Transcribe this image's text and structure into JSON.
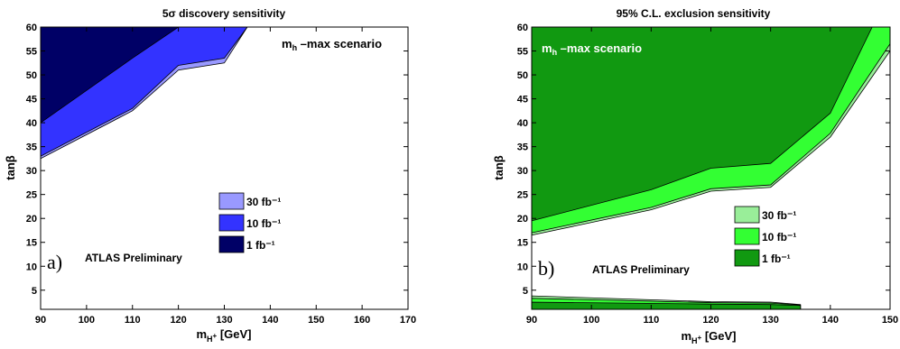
{
  "chart_data": [
    {
      "type": "area",
      "title": "5σ discovery sensitivity",
      "xlabel": "m_H+ [GeV]",
      "ylabel": "tanβ",
      "xlim": [
        90,
        170
      ],
      "ylim": [
        1,
        60
      ],
      "xticks": [
        90,
        100,
        110,
        120,
        130,
        140,
        150,
        160,
        170
      ],
      "yticks": [
        5,
        10,
        15,
        20,
        25,
        30,
        35,
        40,
        45,
        50,
        55,
        60
      ],
      "annotation": "m_h –max scenario",
      "annotation_color": "#000000",
      "panel_label": "a)",
      "watermark": "ATLAS Preliminary",
      "legend_position": "lower-center",
      "series": [
        {
          "name": "30 fb⁻¹",
          "color": "#9999ff",
          "x": [
            90,
            110,
            120,
            130,
            135
          ],
          "y": [
            32.5,
            42.5,
            51.0,
            52.5,
            60
          ]
        },
        {
          "name": "10 fb⁻¹",
          "color": "#3333ff",
          "x": [
            90,
            110,
            120,
            130,
            135
          ],
          "y": [
            33.0,
            43.0,
            52.0,
            53.5,
            60
          ]
        },
        {
          "name": "1 fb⁻¹",
          "color": "#000066",
          "x": [
            90,
            110,
            120,
            124
          ],
          "y": [
            40.0,
            53.5,
            60,
            60
          ]
        }
      ]
    },
    {
      "type": "area",
      "title": "95% C.L. exclusion sensitivity",
      "xlabel": "m_H+ [GeV]",
      "ylabel": "tanβ",
      "xlim": [
        90,
        150
      ],
      "ylim": [
        1,
        60
      ],
      "xticks": [
        90,
        100,
        110,
        120,
        130,
        140,
        150
      ],
      "yticks": [
        5,
        10,
        15,
        20,
        25,
        30,
        35,
        40,
        45,
        50,
        55,
        60
      ],
      "annotation": "m_h –max scenario",
      "annotation_color": "#ffffff",
      "panel_label": "b)",
      "watermark": "ATLAS Preliminary",
      "legend_position": "lower-center",
      "series": [
        {
          "name": "30 fb⁻¹",
          "color": "#99ee99",
          "x": [
            90,
            110,
            120,
            130,
            140,
            150
          ],
          "y": [
            16.5,
            21.8,
            25.7,
            26.5,
            37.0,
            55.0
          ]
        },
        {
          "name": "10 fb⁻¹",
          "color": "#33ff33",
          "x": [
            90,
            110,
            120,
            130,
            140,
            150
          ],
          "y": [
            17.0,
            22.3,
            26.2,
            27.0,
            37.8,
            56.5
          ]
        },
        {
          "name": "1 fb⁻¹",
          "color": "#119911",
          "x": [
            90,
            110,
            120,
            130,
            140,
            147
          ],
          "y": [
            19.5,
            26.0,
            30.5,
            31.5,
            42.0,
            60.0
          ]
        }
      ],
      "low_region": {
        "30 fb⁻¹": {
          "x": [
            90,
            120,
            130,
            135
          ],
          "y": [
            3.8,
            2.6,
            2.5,
            2.0
          ]
        },
        "10 fb⁻¹": {
          "x": [
            90,
            120,
            130,
            135
          ],
          "y": [
            3.3,
            2.4,
            2.3,
            1.9
          ]
        },
        "1 fb⁻¹": {
          "x": [
            90,
            120,
            130,
            135
          ],
          "y": [
            2.5,
            2.1,
            2.0,
            1.8
          ]
        }
      }
    }
  ]
}
